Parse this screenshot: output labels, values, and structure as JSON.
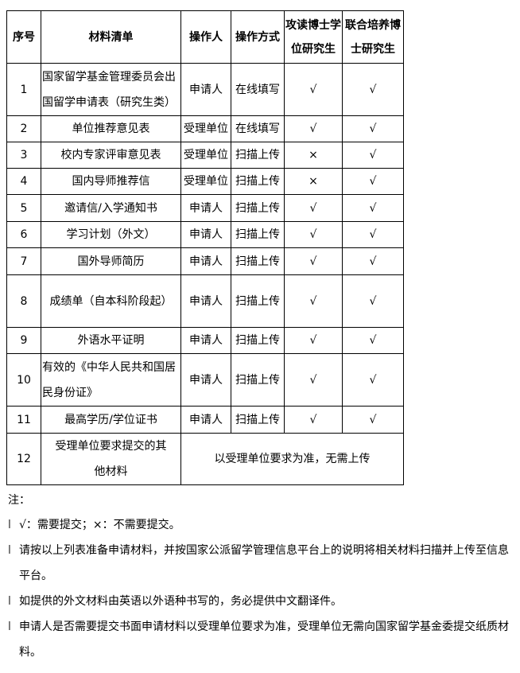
{
  "table": {
    "headers": [
      "序号",
      "材料清单",
      "操作人",
      "操作方式",
      "攻读博士学位研究生",
      "联合培养博士研究生"
    ],
    "rows": [
      {
        "no": "1",
        "material": "国家留学基金管理委员会出国留学申请表（研究生类）",
        "operator": "申请人",
        "method": "在线填写",
        "phd": "√",
        "joint": "√"
      },
      {
        "no": "2",
        "material": "单位推荐意见表",
        "operator": "受理单位",
        "method": "在线填写",
        "phd": "√",
        "joint": "√"
      },
      {
        "no": "3",
        "material": "校内专家评审意见表",
        "operator": "受理单位",
        "method": "扫描上传",
        "phd": "×",
        "joint": "√"
      },
      {
        "no": "4",
        "material": "国内导师推荐信",
        "operator": "受理单位",
        "method": "扫描上传",
        "phd": "×",
        "joint": "√"
      },
      {
        "no": "5",
        "material": "邀请信/入学通知书",
        "operator": "申请人",
        "method": "扫描上传",
        "phd": "√",
        "joint": "√"
      },
      {
        "no": "6",
        "material": "学习计划（外文）",
        "operator": "申请人",
        "method": "扫描上传",
        "phd": "√",
        "joint": "√"
      },
      {
        "no": "7",
        "material": "国外导师简历",
        "operator": "申请人",
        "method": "扫描上传",
        "phd": "√",
        "joint": "√"
      },
      {
        "no": "8",
        "material": "成绩单（自本科阶段起）",
        "operator": "申请人",
        "method": "扫描上传",
        "phd": "√",
        "joint": "√"
      },
      {
        "no": "9",
        "material": "外语水平证明",
        "operator": "申请人",
        "method": "扫描上传",
        "phd": "√",
        "joint": "√"
      },
      {
        "no": "10",
        "material": "有效的《中华人民共和国居民身份证》",
        "operator": "申请人",
        "method": "扫描上传",
        "phd": "√",
        "joint": "√"
      },
      {
        "no": "11",
        "material": "最高学历/学位证书",
        "operator": "申请人",
        "method": "扫描上传",
        "phd": "√",
        "joint": "√"
      }
    ],
    "last_row": {
      "no": "12",
      "material": "受理单位要求提交的其他材料",
      "merged": "以受理单位要求为准，无需上传"
    }
  },
  "notes": {
    "title": "注：",
    "bullet": "l",
    "items": [
      "√：需要提交；×：不需要提交。",
      "请按以上列表准备申请材料，并按国家公派留学管理信息平台上的说明将相关材料扫描并上传至信息平台。",
      "如提供的外文材料由英语以外语种书写的，务必提供中文翻译件。",
      "申请人是否需要提交书面申请材料以受理单位要求为准，受理单位无需向国家留学基金委提交纸质材料。"
    ]
  }
}
